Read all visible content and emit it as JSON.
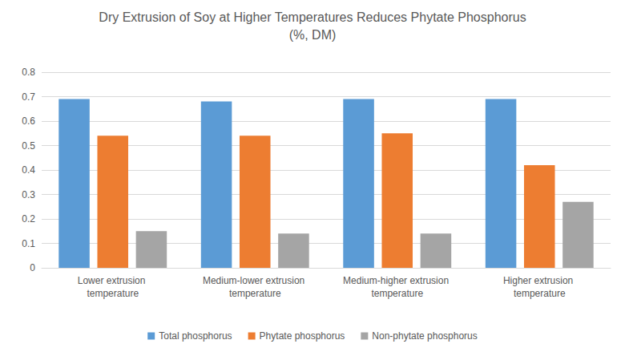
{
  "chart_data": {
    "type": "bar",
    "title": "Dry Extrusion of Soy at Higher Temperatures Reduces Phytate Phosphorus",
    "subtitle": "(%, DM)",
    "categories": [
      "Lower extrusion temperature",
      "Medium-lower extrusion temperature",
      "Medium-higher extrusion temperature",
      "Higher extrusion temperature"
    ],
    "series": [
      {
        "name": "Total phosphorus",
        "color": "#5b9bd5",
        "values": [
          0.69,
          0.68,
          0.69,
          0.69
        ]
      },
      {
        "name": "Phytate phosphorus",
        "color": "#ed7d31",
        "values": [
          0.54,
          0.54,
          0.55,
          0.42
        ]
      },
      {
        "name": "Non-phytate phosphorus",
        "color": "#a5a5a5",
        "values": [
          0.15,
          0.14,
          0.14,
          0.27
        ]
      }
    ],
    "ylim": [
      0,
      0.8
    ],
    "yticks": [
      0,
      0.1,
      0.2,
      0.3,
      0.4,
      0.5,
      0.6,
      0.7,
      0.8
    ],
    "grid": true,
    "legend": "bottom"
  }
}
